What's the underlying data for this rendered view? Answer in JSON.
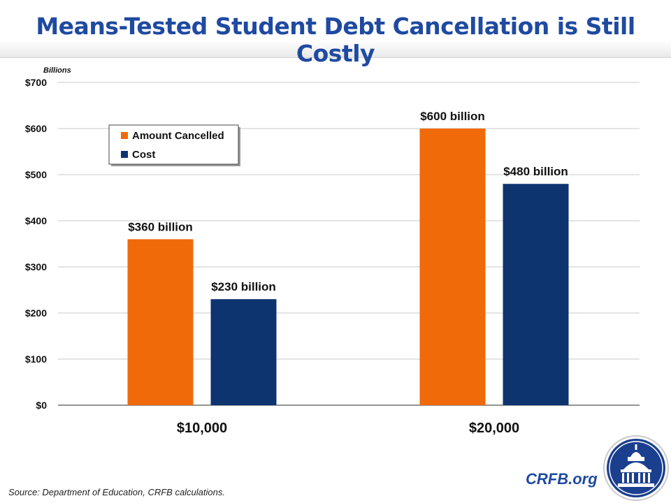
{
  "header": {
    "title": "Means-Tested Student Debt Cancellation is Still Costly"
  },
  "chart_data": {
    "type": "bar",
    "title": "Means-Tested Student Debt Cancellation is Still Costly",
    "ylabel": "Billions",
    "xlabel": "",
    "ylim": [
      0,
      700
    ],
    "yticks": [
      0,
      100,
      200,
      300,
      400,
      500,
      600,
      700
    ],
    "ytick_labels": [
      "$0",
      "$100",
      "$200",
      "$300",
      "$400",
      "$500",
      "$600",
      "$700"
    ],
    "categories": [
      "$10,000",
      "$20,000"
    ],
    "grid": true,
    "legend_position": "top-left",
    "series": [
      {
        "name": "Amount Cancelled",
        "color": "#f06a0a",
        "values": [
          360,
          600
        ],
        "labels": [
          "$360 billion",
          "$600 billion"
        ]
      },
      {
        "name": "Cost",
        "color": "#0e3470",
        "values": [
          230,
          480
        ],
        "labels": [
          "$230 billion",
          "$480 billion"
        ]
      }
    ]
  },
  "footer": {
    "source": "Source: Department of Education, CRFB calculations.",
    "site": "CRFB.org"
  }
}
